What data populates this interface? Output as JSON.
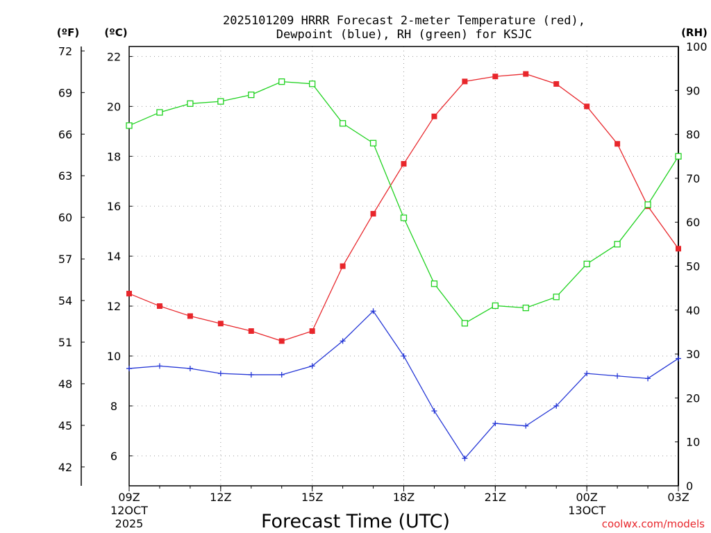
{
  "chart_data": {
    "type": "line",
    "title_line1": "2025101209 HRRR Forecast 2-meter Temperature (red),",
    "title_line2": "Dewpoint (blue), RH (green) for KSJC",
    "xlabel": "Forecast Time (UTC)",
    "credit": "coolwx.com/models",
    "unit_f": "(ºF)",
    "unit_c": "(ºC)",
    "unit_rh": "(RH)",
    "x_hours": [
      9,
      10,
      11,
      12,
      13,
      14,
      15,
      16,
      17,
      18,
      19,
      20,
      21,
      22,
      23,
      24,
      25,
      26,
      27
    ],
    "x_ticks": [
      {
        "hour": 9,
        "label": "09Z",
        "sub1": "12OCT",
        "sub2": "2025"
      },
      {
        "hour": 12,
        "label": "12Z",
        "sub1": "",
        "sub2": ""
      },
      {
        "hour": 15,
        "label": "15Z",
        "sub1": "",
        "sub2": ""
      },
      {
        "hour": 18,
        "label": "18Z",
        "sub1": "",
        "sub2": ""
      },
      {
        "hour": 21,
        "label": "21Z",
        "sub1": "",
        "sub2": ""
      },
      {
        "hour": 24,
        "label": "00Z",
        "sub1": "13OCT",
        "sub2": ""
      },
      {
        "hour": 27,
        "label": "03Z",
        "sub1": "",
        "sub2": ""
      }
    ],
    "celsius_axis": {
      "range": [
        4.8,
        22.4
      ],
      "ticks": [
        6,
        8,
        10,
        12,
        14,
        16,
        18,
        20,
        22
      ]
    },
    "fahrenheit_axis": {
      "ticks": [
        42,
        45,
        48,
        51,
        54,
        57,
        60,
        63,
        66,
        69,
        72
      ]
    },
    "rh_axis": {
      "range": [
        0,
        100
      ],
      "ticks": [
        0,
        10,
        20,
        30,
        40,
        50,
        60,
        70,
        80,
        90,
        100
      ]
    },
    "series": [
      {
        "name": "Temperature",
        "axis": "celsius",
        "color": "#e8262b",
        "marker": "filled-square",
        "values": [
          12.5,
          12.0,
          11.6,
          11.3,
          11.0,
          10.6,
          11.0,
          13.6,
          15.7,
          17.7,
          19.6,
          21.0,
          21.2,
          21.3,
          20.9,
          20.0,
          18.5,
          16.0,
          14.3
        ]
      },
      {
        "name": "Dewpoint",
        "axis": "celsius",
        "color": "#2436d6",
        "marker": "plus",
        "values": [
          9.5,
          9.6,
          9.5,
          9.3,
          9.25,
          9.25,
          9.6,
          10.6,
          11.8,
          10.0,
          7.8,
          5.9,
          7.3,
          7.2,
          8.0,
          9.3,
          9.2,
          9.1,
          9.9
        ]
      },
      {
        "name": "RH",
        "axis": "rh",
        "color": "#1fd21f",
        "marker": "open-square",
        "values": [
          82,
          85,
          87,
          87.5,
          89,
          92,
          91.5,
          82.5,
          78,
          61,
          46,
          37,
          41,
          40.5,
          43,
          50.5,
          55,
          64,
          75
        ]
      }
    ]
  }
}
